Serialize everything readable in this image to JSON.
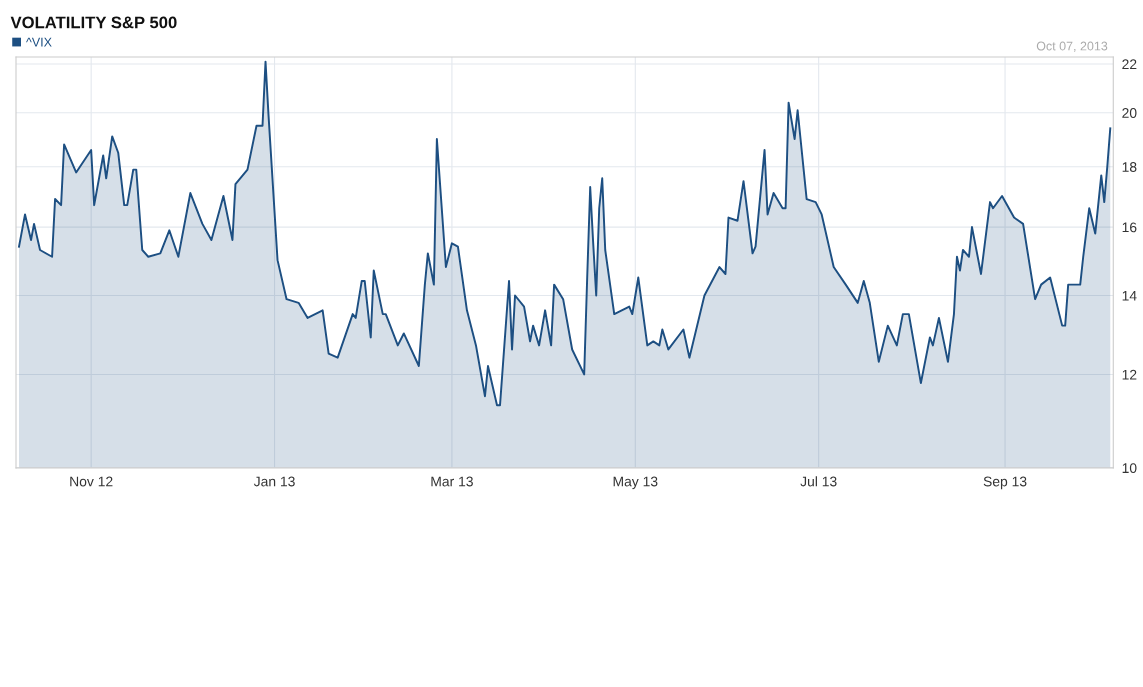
{
  "chart_data": {
    "type": "area",
    "title": "VOLATILITY S&P 500",
    "annotations": [
      "Oct 07, 2013"
    ],
    "legend": "top left",
    "grid": true,
    "log": true,
    "xlim": [
      "2012-10-07",
      "2013-10-07"
    ],
    "xticks": [
      {
        "value": "2012-11-01",
        "label": "Nov 12"
      },
      {
        "value": "2013-01-01",
        "label": "Jan 13"
      },
      {
        "value": "2013-03-01",
        "label": "Mar 13"
      },
      {
        "value": "2013-05-01",
        "label": "May 13"
      },
      {
        "value": "2013-07-01",
        "label": "Jul 13"
      },
      {
        "value": "2013-09-01",
        "label": "Sep 13"
      }
    ],
    "ylim": [
      10,
      22.3
    ],
    "yticks": [
      10,
      12,
      14,
      16,
      18,
      20,
      22
    ],
    "series": [
      {
        "name": "^VIX",
        "color": "#1d4f82",
        "x": [
          "2012-10-08",
          "2012-10-10",
          "2012-10-12",
          "2012-10-13",
          "2012-10-15",
          "2012-10-19",
          "2012-10-20",
          "2012-10-22",
          "2012-10-23",
          "2012-10-27",
          "2012-11-01",
          "2012-11-02",
          "2012-11-05",
          "2012-11-06",
          "2012-11-08",
          "2012-11-10",
          "2012-11-12",
          "2012-11-13",
          "2012-11-15",
          "2012-11-16",
          "2012-11-18",
          "2012-11-20",
          "2012-11-24",
          "2012-11-27",
          "2012-11-30",
          "2012-12-04",
          "2012-12-08",
          "2012-12-11",
          "2012-12-15",
          "2012-12-18",
          "2012-12-19",
          "2012-12-23",
          "2012-12-26",
          "2012-12-28",
          "2012-12-29",
          "2012-12-30",
          "2013-01-02",
          "2013-01-05",
          "2013-01-09",
          "2013-01-12",
          "2013-01-17",
          "2013-01-19",
          "2013-01-22",
          "2013-01-27",
          "2013-01-28",
          "2013-01-30",
          "2013-01-31",
          "2013-02-02",
          "2013-02-03",
          "2013-02-06",
          "2013-02-07",
          "2013-02-11",
          "2013-02-13",
          "2013-02-18",
          "2013-02-20",
          "2013-02-21",
          "2013-02-23",
          "2013-02-24",
          "2013-02-27",
          "2013-03-01",
          "2013-03-03",
          "2013-03-06",
          "2013-03-09",
          "2013-03-12",
          "2013-03-13",
          "2013-03-16",
          "2013-03-17",
          "2013-03-20",
          "2013-03-21",
          "2013-03-22",
          "2013-03-25",
          "2013-03-27",
          "2013-03-28",
          "2013-03-30",
          "2013-04-01",
          "2013-04-03",
          "2013-04-04",
          "2013-04-07",
          "2013-04-10",
          "2013-04-14",
          "2013-04-15",
          "2013-04-16",
          "2013-04-17",
          "2013-04-18",
          "2013-04-19",
          "2013-04-20",
          "2013-04-21",
          "2013-04-24",
          "2013-04-29",
          "2013-04-30",
          "2013-05-02",
          "2013-05-05",
          "2013-05-07",
          "2013-05-09",
          "2013-05-10",
          "2013-05-12",
          "2013-05-17",
          "2013-05-19",
          "2013-05-24",
          "2013-05-29",
          "2013-05-31",
          "2013-06-01",
          "2013-06-04",
          "2013-06-06",
          "2013-06-09",
          "2013-06-10",
          "2013-06-13",
          "2013-06-14",
          "2013-06-16",
          "2013-06-19",
          "2013-06-20",
          "2013-06-21",
          "2013-06-23",
          "2013-06-24",
          "2013-06-27",
          "2013-06-30",
          "2013-07-02",
          "2013-07-06",
          "2013-07-10",
          "2013-07-14",
          "2013-07-16",
          "2013-07-18",
          "2013-07-21",
          "2013-07-24",
          "2013-07-27",
          "2013-07-29",
          "2013-07-31",
          "2013-08-04",
          "2013-08-07",
          "2013-08-08",
          "2013-08-10",
          "2013-08-13",
          "2013-08-15",
          "2013-08-16",
          "2013-08-17",
          "2013-08-18",
          "2013-08-20",
          "2013-08-21",
          "2013-08-24",
          "2013-08-27",
          "2013-08-28",
          "2013-08-31",
          "2013-09-04",
          "2013-09-07",
          "2013-09-11",
          "2013-09-13",
          "2013-09-16",
          "2013-09-20",
          "2013-09-21",
          "2013-09-22",
          "2013-09-26",
          "2013-09-27",
          "2013-09-29",
          "2013-10-01",
          "2013-10-03",
          "2013-10-04",
          "2013-10-05",
          "2013-10-06"
        ],
        "values": [
          15.4,
          16.4,
          15.6,
          16.1,
          15.3,
          15.1,
          16.9,
          16.7,
          18.8,
          17.8,
          18.6,
          16.7,
          18.4,
          17.6,
          19.1,
          18.5,
          16.7,
          16.7,
          17.9,
          17.9,
          15.3,
          15.1,
          15.2,
          15.9,
          15.1,
          17.1,
          16.1,
          15.6,
          17.0,
          15.6,
          17.4,
          17.9,
          19.5,
          19.5,
          22.1,
          19.9,
          15.0,
          13.9,
          13.8,
          13.4,
          13.6,
          12.5,
          12.4,
          13.5,
          13.4,
          14.4,
          14.4,
          12.9,
          14.7,
          13.5,
          13.5,
          12.7,
          13.0,
          12.2,
          14.3,
          15.2,
          14.3,
          19.0,
          14.8,
          15.5,
          15.4,
          13.6,
          12.7,
          11.5,
          12.2,
          11.3,
          11.3,
          14.4,
          12.6,
          14.0,
          13.7,
          12.8,
          13.2,
          12.7,
          13.6,
          12.7,
          14.3,
          13.9,
          12.6,
          12.0,
          14.5,
          17.3,
          15.5,
          14.0,
          16.6,
          17.6,
          15.3,
          13.5,
          13.7,
          13.5,
          14.5,
          12.7,
          12.8,
          12.7,
          13.1,
          12.6,
          13.1,
          12.4,
          14.0,
          14.8,
          14.6,
          16.3,
          16.2,
          17.5,
          15.2,
          15.4,
          18.6,
          16.4,
          17.1,
          16.6,
          16.6,
          20.4,
          19.0,
          20.1,
          16.9,
          16.8,
          16.4,
          14.8,
          14.3,
          13.8,
          14.4,
          13.8,
          12.3,
          13.2,
          12.7,
          13.5,
          13.5,
          11.8,
          12.9,
          12.7,
          13.4,
          12.3,
          13.5,
          15.1,
          14.7,
          15.3,
          15.1,
          16.0,
          14.6,
          16.8,
          16.6,
          17.0,
          16.3,
          16.1,
          13.9,
          14.3,
          14.5,
          13.2,
          13.2,
          14.3,
          14.3,
          15.1,
          16.6,
          15.8,
          17.7,
          16.8,
          18.0,
          19.4
        ]
      }
    ]
  }
}
